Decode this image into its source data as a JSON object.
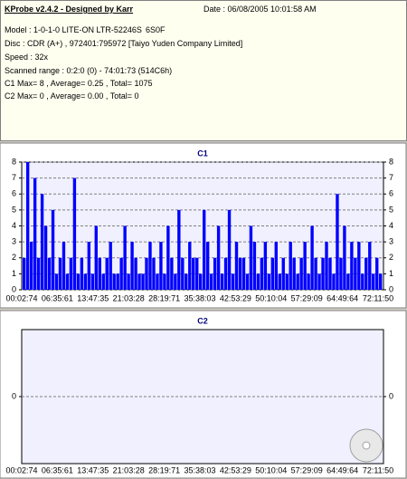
{
  "header": {
    "title": "KProbe v2.4.2 - Designed by Karr",
    "date": "Date : 06/08/2005 10:01:58 AM",
    "model": "Model : 1-0-1-0 LITE-ON LTR-52246S",
    "firmware": "6S0F",
    "disc": "Disc : CDR (A+) , 972401:795972 [Taiyo Yuden Company Limited]",
    "speed": "Speed : 32x",
    "range": "Scanned range : 0:2:0 (0) - 74:01:73 (514C6h)",
    "c1": "C1 Max= 8 , Average= 0.25 , Total= 1075",
    "c2": "C2 Max= 0 , Average= 0.00 , Total= 0"
  },
  "chart_data": [
    {
      "type": "bar",
      "title": "C1",
      "color": "#0000ff",
      "grid": true,
      "ylim": [
        0,
        8
      ],
      "yticks": [
        0,
        1,
        2,
        3,
        4,
        5,
        6,
        7,
        8
      ],
      "xticks": [
        "00:02:74",
        "06:35:61",
        "13:47:35",
        "21:03:28",
        "28:19:71",
        "35:38:03",
        "42:53:29",
        "50:10:04",
        "57:29:09",
        "64:49:64",
        "72:11:50"
      ],
      "values": [
        2,
        8,
        3,
        7,
        2,
        6,
        4,
        2,
        5,
        1,
        2,
        3,
        1,
        2,
        7,
        1,
        2,
        1,
        3,
        1,
        4,
        2,
        1,
        2,
        3,
        1,
        1,
        2,
        4,
        1,
        3,
        2,
        1,
        1,
        2,
        3,
        2,
        1,
        3,
        1,
        4,
        2,
        1,
        5,
        2,
        1,
        3,
        2,
        2,
        1,
        5,
        3,
        1,
        2,
        4,
        1,
        2,
        5,
        1,
        3,
        2,
        2,
        1,
        4,
        3,
        1,
        2,
        3,
        1,
        2,
        3,
        1,
        2,
        1,
        3,
        2,
        1,
        2,
        3,
        1,
        4,
        2,
        1,
        2,
        3,
        2,
        1,
        6,
        2,
        4,
        1,
        3,
        2,
        3,
        1,
        2,
        3,
        1,
        2,
        1
      ]
    },
    {
      "type": "bar",
      "title": "C2",
      "color": "#0000ff",
      "grid": true,
      "ylim": [
        -1,
        1
      ],
      "yticks": [
        0
      ],
      "xticks": [
        "00:02:74",
        "06:35:61",
        "13:47:35",
        "21:03:28",
        "28:19:71",
        "35:38:03",
        "42:53:29",
        "50:10:04",
        "57:29:09",
        "64:49:64",
        "72:11:50"
      ]
    }
  ]
}
